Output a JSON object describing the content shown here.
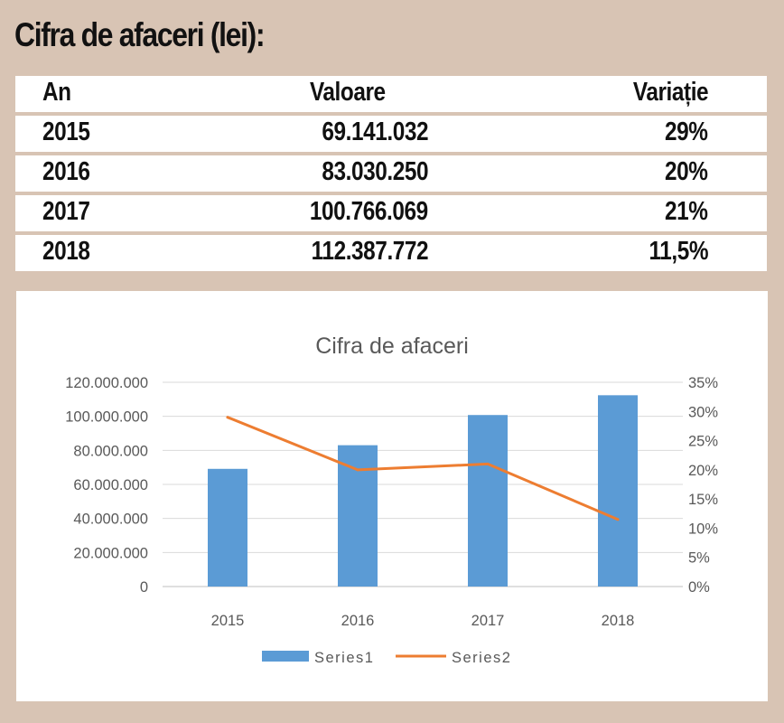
{
  "page_title": "Cifra de afaceri (lei):",
  "table": {
    "headers": [
      "An",
      "Valoare",
      "Variație"
    ],
    "rows": [
      [
        "2015",
        "69.141.032",
        "29%"
      ],
      [
        "2016",
        "83.030.250",
        "20%"
      ],
      [
        "2017",
        "100.766.069",
        "21%"
      ],
      [
        "2018",
        "112.387.772",
        "11,5%"
      ]
    ]
  },
  "colors": {
    "background": "#d8c4b4",
    "bar": "#5b9bd5",
    "line": "#ed7d31"
  },
  "chart_data": {
    "type": "bar",
    "title": "Cifra de afaceri",
    "categories": [
      "2015",
      "2016",
      "2017",
      "2018"
    ],
    "series": [
      {
        "name": "Series1",
        "type": "bar",
        "axis": "left",
        "values": [
          69141032,
          83030250,
          100766069,
          112387772
        ]
      },
      {
        "name": "Series2",
        "type": "line",
        "axis": "right",
        "values": [
          0.29,
          0.2,
          0.21,
          0.115
        ]
      }
    ],
    "ylim": [
      0,
      120000000
    ],
    "y_ticks": [
      "0",
      "20.000.000",
      "40.000.000",
      "60.000.000",
      "80.000.000",
      "100.000.000",
      "120.000.000"
    ],
    "y2lim": [
      0,
      0.35
    ],
    "y2_ticks": [
      "0%",
      "5%",
      "10%",
      "15%",
      "20%",
      "25%",
      "30%",
      "35%"
    ],
    "legend_position": "bottom",
    "grid": true
  }
}
